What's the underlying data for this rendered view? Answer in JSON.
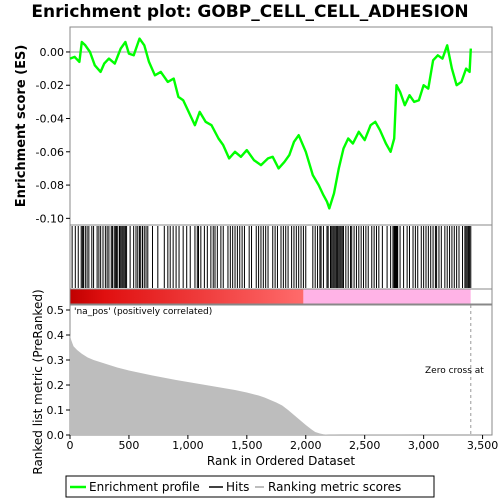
{
  "chart_data": [
    {
      "panel": "enrichment-profile",
      "type": "line",
      "title": "Enrichment plot: GOBP_CELL_CELL_ADHESION",
      "ylabel": "Enrichment score (ES)",
      "yticks": [
        "0.00",
        "-0.02",
        "-0.04",
        "-0.06",
        "-0.08",
        "-0.10"
      ],
      "ylim": [
        -0.104,
        0.015
      ],
      "xlim": [
        0,
        3580
      ],
      "grid": false,
      "series": [
        {
          "name": "Enrichment profile",
          "color": "#00ff00",
          "x": [
            0,
            40,
            80,
            100,
            130,
            170,
            210,
            260,
            290,
            330,
            380,
            430,
            470,
            500,
            540,
            590,
            630,
            670,
            720,
            770,
            830,
            880,
            920,
            960,
            1000,
            1060,
            1100,
            1150,
            1200,
            1260,
            1300,
            1350,
            1400,
            1450,
            1500,
            1560,
            1620,
            1680,
            1720,
            1770,
            1820,
            1860,
            1900,
            1940,
            2000,
            2060,
            2110,
            2150,
            2180,
            2200,
            2240,
            2280,
            2320,
            2360,
            2400,
            2450,
            2500,
            2550,
            2590,
            2630,
            2680,
            2720,
            2750,
            2770,
            2800,
            2840,
            2880,
            2920,
            2960,
            3000,
            3040,
            3080,
            3120,
            3160,
            3200,
            3240,
            3280,
            3320,
            3360,
            3390,
            3400
          ],
          "y": [
            -0.004,
            -0.003,
            -0.006,
            0.006,
            0.004,
            0.0,
            -0.008,
            -0.012,
            -0.007,
            -0.004,
            -0.007,
            0.002,
            0.006,
            -0.001,
            -0.002,
            0.008,
            0.004,
            -0.006,
            -0.014,
            -0.012,
            -0.018,
            -0.016,
            -0.027,
            -0.029,
            -0.035,
            -0.044,
            -0.036,
            -0.042,
            -0.044,
            -0.052,
            -0.056,
            -0.064,
            -0.06,
            -0.063,
            -0.059,
            -0.065,
            -0.068,
            -0.064,
            -0.063,
            -0.07,
            -0.066,
            -0.062,
            -0.054,
            -0.05,
            -0.06,
            -0.074,
            -0.08,
            -0.086,
            -0.09,
            -0.094,
            -0.085,
            -0.07,
            -0.058,
            -0.052,
            -0.055,
            -0.048,
            -0.053,
            -0.044,
            -0.042,
            -0.047,
            -0.055,
            -0.06,
            -0.052,
            -0.02,
            -0.024,
            -0.032,
            -0.026,
            -0.03,
            -0.029,
            -0.02,
            -0.022,
            -0.005,
            -0.002,
            -0.004,
            0.004,
            -0.01,
            -0.02,
            -0.018,
            -0.01,
            -0.012,
            0.002
          ]
        }
      ]
    },
    {
      "panel": "hits",
      "type": "scatter",
      "legend_name": "Hits",
      "hit_positions": [
        18,
        45,
        70,
        95,
        105,
        115,
        130,
        145,
        160,
        185,
        200,
        230,
        245,
        260,
        280,
        300,
        315,
        330,
        350,
        360,
        375,
        385,
        395,
        405,
        420,
        430,
        440,
        450,
        460,
        470,
        480,
        510,
        540,
        560,
        575,
        590,
        600,
        615,
        630,
        645,
        660,
        700,
        745,
        800,
        830,
        850,
        875,
        900,
        925,
        960,
        990,
        1020,
        1060,
        1080,
        1090,
        1110,
        1140,
        1165,
        1195,
        1215,
        1230,
        1250,
        1280,
        1300,
        1340,
        1360,
        1380,
        1400,
        1420,
        1440,
        1460,
        1480,
        1520,
        1540,
        1580,
        1600,
        1620,
        1640,
        1660,
        1680,
        1720,
        1740,
        1760,
        1790,
        1810,
        1830,
        1850,
        1880,
        1900,
        1920,
        1940,
        1960,
        1980,
        2000,
        2060,
        2080,
        2100,
        2120,
        2130,
        2150,
        2180,
        2190,
        2210,
        2220,
        2230,
        2240,
        2250,
        2260,
        2270,
        2280,
        2290,
        2300,
        2310,
        2320,
        2340,
        2360,
        2380,
        2390,
        2410,
        2430,
        2450,
        2470,
        2490,
        2510,
        2530,
        2560,
        2580,
        2600,
        2620,
        2650,
        2690,
        2720,
        2740,
        2750,
        2755,
        2760,
        2765,
        2770,
        2775,
        2780,
        2800,
        2830,
        2860,
        2880,
        2910,
        2930,
        2950,
        2980,
        3000,
        3020,
        3040,
        3060,
        3080,
        3100,
        3110,
        3130,
        3150,
        3180,
        3200,
        3220,
        3240,
        3260,
        3280,
        3300,
        3330,
        3350,
        3360,
        3370,
        3380,
        3390,
        3400
      ]
    },
    {
      "panel": "ranked-metric",
      "type": "area",
      "xlabel": "Rank in Ordered Dataset",
      "ylabel": "Ranked list metric (PreRanked)",
      "xticks": [
        "0",
        "500",
        "1,000",
        "1,500",
        "2,000",
        "2,500",
        "3,000",
        "3,500"
      ],
      "yticks": [
        "0.0",
        "0.1",
        "0.2",
        "0.3",
        "0.4",
        "0.5"
      ],
      "ylim": [
        0,
        0.52
      ],
      "xlim": [
        0,
        3580
      ],
      "series": [
        {
          "name": "Ranking metric scores",
          "color": "#bdbdbd",
          "x": [
            0,
            10,
            30,
            60,
            100,
            150,
            200,
            300,
            400,
            500,
            600,
            700,
            800,
            900,
            1000,
            1100,
            1200,
            1300,
            1400,
            1500,
            1600,
            1650,
            1700,
            1750,
            1800,
            1850,
            1900,
            1950,
            2000,
            2050,
            2080,
            2120,
            2150,
            2180,
            2200,
            2250,
            2300,
            2400,
            2500,
            2600,
            2800,
            3000,
            3200,
            3400
          ],
          "y": [
            0.4,
            0.38,
            0.355,
            0.34,
            0.325,
            0.31,
            0.3,
            0.285,
            0.27,
            0.258,
            0.248,
            0.238,
            0.229,
            0.22,
            0.212,
            0.204,
            0.196,
            0.188,
            0.18,
            0.17,
            0.158,
            0.15,
            0.14,
            0.13,
            0.118,
            0.1,
            0.08,
            0.06,
            0.04,
            0.022,
            0.012,
            0.006,
            0.003,
            0.0015,
            0.001,
            0.0007,
            0.0005,
            0.0004,
            0.0003,
            0.0002,
            0.0002,
            0.0001,
            0.0001,
            0.0
          ]
        }
      ],
      "annotations": [
        {
          "text": "'na_pos' (positively correlated)",
          "color": "#d40000"
        },
        {
          "text": "Zero cross at",
          "color": "#333333"
        }
      ],
      "zero_cross": 3400,
      "rank_bar": {
        "dense_color": "#c00000",
        "mid_color": "#ff6b6b",
        "pos_end": 1980,
        "neg_color": "#ffb3e6",
        "end": 3400
      }
    }
  ],
  "legend": {
    "items": [
      {
        "label": "Enrichment profile",
        "color": "#00ff00"
      },
      {
        "label": "Hits",
        "color": "#000000"
      },
      {
        "label": "Ranking metric scores",
        "color": "#bdbdbd"
      }
    ]
  }
}
